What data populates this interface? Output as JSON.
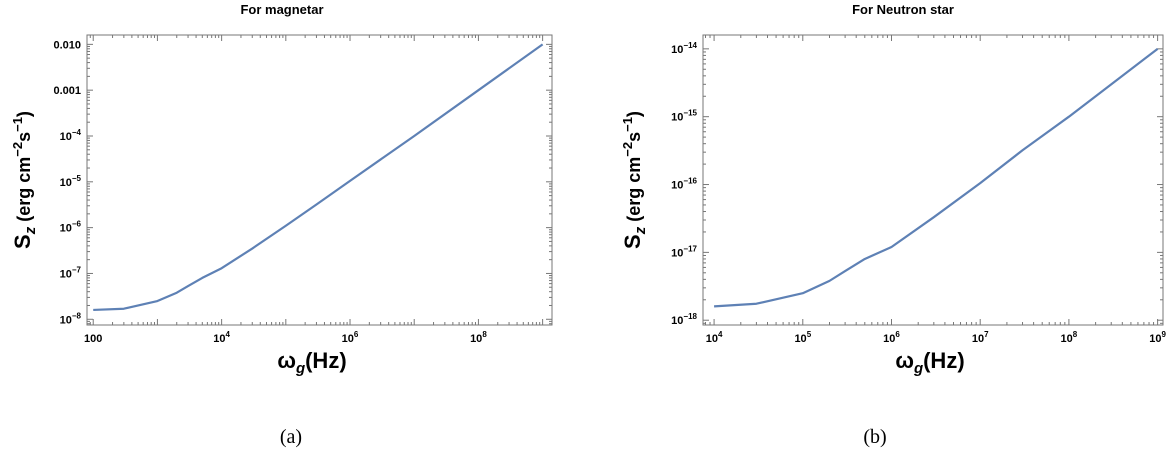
{
  "colors": {
    "curve": "#5e81b5"
  },
  "chart_data": [
    {
      "type": "line",
      "title": "For magnetar",
      "xlabel": {
        "main": "ω",
        "sub": "g",
        "rest": "(Hz)"
      },
      "ylabel": {
        "main": "S",
        "sub": "z",
        "open": " (erg cm",
        "sup1": "−2",
        "mid": "s",
        "sup2": "−1",
        "close": ")"
      },
      "xscale": "log",
      "yscale": "log",
      "xlim": [
        80,
        1400000000.0
      ],
      "ylim": [
        7.5e-09,
        0.016
      ],
      "x_ticks": [
        {
          "value": 100,
          "base": "100",
          "exp": ""
        },
        {
          "value": 10000,
          "base": "10",
          "exp": "4"
        },
        {
          "value": 1000000,
          "base": "10",
          "exp": "6"
        },
        {
          "value": 100000000,
          "base": "10",
          "exp": "8"
        }
      ],
      "y_ticks": [
        {
          "value": 1e-08,
          "base": "10",
          "exp": "−8"
        },
        {
          "value": 1e-07,
          "base": "10",
          "exp": "−7"
        },
        {
          "value": 1e-06,
          "base": "10",
          "exp": "−6"
        },
        {
          "value": 1e-05,
          "base": "10",
          "exp": "−5"
        },
        {
          "value": 0.0001,
          "base": "10",
          "exp": "−4"
        },
        {
          "value": 0.001,
          "base": "0.001",
          "exp": ""
        },
        {
          "value": 0.01,
          "base": "0.010",
          "exp": ""
        }
      ],
      "series": [
        {
          "x": [
            100,
            300,
            1000,
            2000,
            3000,
            5000,
            10000,
            30000,
            100000,
            300000,
            1000000,
            10000000,
            100000000,
            1000000000
          ],
          "y": [
            1.6e-08,
            1.7e-08,
            2.5e-08,
            3.8e-08,
            5.3e-08,
            8e-08,
            1.3e-07,
            3.5e-07,
            1.1e-06,
            3.2e-06,
            1.05e-05,
            0.0001,
            0.001,
            0.01
          ]
        }
      ],
      "caption": "(a)"
    },
    {
      "type": "line",
      "title": "For Neutron star",
      "xlabel": {
        "main": "ω",
        "sub": "g",
        "rest": "(Hz)"
      },
      "ylabel": {
        "main": "S",
        "sub": "z",
        "open": " (erg cm",
        "sup1": "−2",
        "mid": "s",
        "sup2": "−1",
        "close": ")"
      },
      "xscale": "log",
      "yscale": "log",
      "xlim": [
        7500,
        1150000000.0
      ],
      "ylim": [
        8.5e-19,
        1.6e-14
      ],
      "x_ticks": [
        {
          "value": 10000,
          "base": "10",
          "exp": "4"
        },
        {
          "value": 100000,
          "base": "10",
          "exp": "5"
        },
        {
          "value": 1000000,
          "base": "10",
          "exp": "6"
        },
        {
          "value": 10000000,
          "base": "10",
          "exp": "7"
        },
        {
          "value": 100000000,
          "base": "10",
          "exp": "8"
        },
        {
          "value": 1000000000,
          "base": "10",
          "exp": "9"
        }
      ],
      "y_ticks": [
        {
          "value": 1e-18,
          "base": "10",
          "exp": "−18"
        },
        {
          "value": 1e-17,
          "base": "10",
          "exp": "−17"
        },
        {
          "value": 1e-16,
          "base": "10",
          "exp": "−16"
        },
        {
          "value": 1e-15,
          "base": "10",
          "exp": "−15"
        },
        {
          "value": 1e-14,
          "base": "10",
          "exp": "−14"
        }
      ],
      "series": [
        {
          "x": [
            10000,
            30000,
            100000,
            200000,
            300000,
            500000,
            1000000,
            3000000,
            10000000,
            30000000,
            100000000,
            1000000000
          ],
          "y": [
            1.6e-18,
            1.75e-18,
            2.5e-18,
            3.8e-18,
            5.3e-18,
            8e-18,
            1.2e-17,
            3.3e-17,
            1.05e-16,
            3.2e-16,
            1e-15,
            1e-14
          ]
        }
      ],
      "caption": "(b)"
    }
  ]
}
